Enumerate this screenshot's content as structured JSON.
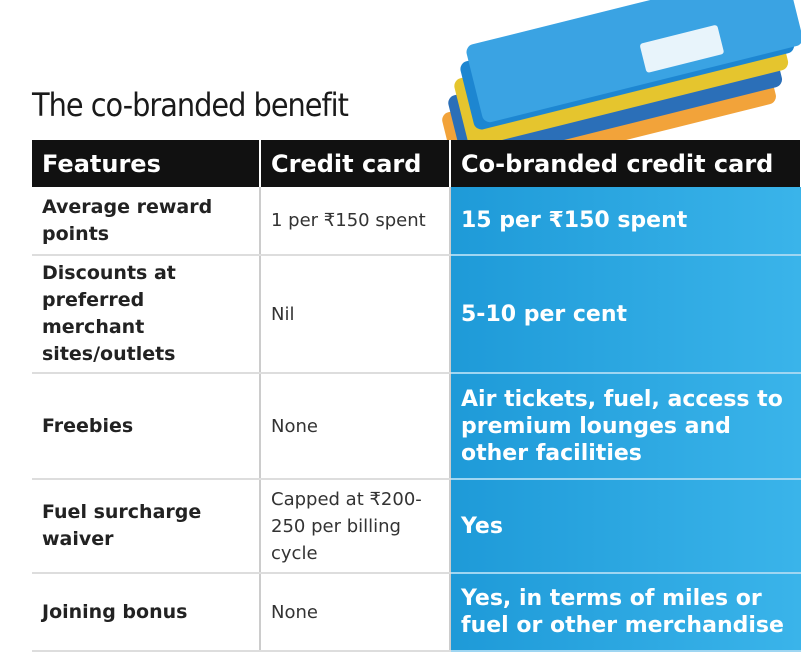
{
  "header": {
    "title": "The co-branded benefit"
  },
  "table": {
    "headers": [
      "Features",
      "Credit card",
      "Co-branded credit card"
    ],
    "rows": [
      [
        "Average reward points",
        "1 per ₹150 spent",
        "15 per ₹150 spent"
      ],
      [
        "Discounts at preferred merchant sites/outlets",
        "Nil",
        "5-10 per cent"
      ],
      [
        "Freebies",
        "None",
        "Air tickets, fuel, access to premium lounges and other facilities"
      ],
      [
        "Fuel surcharge waiver",
        "Capped at ₹200-250 per billing cycle",
        "Yes"
      ],
      [
        "Joining bonus",
        "None",
        "Yes, in terms of miles or fuel or other merchandise"
      ]
    ]
  }
}
